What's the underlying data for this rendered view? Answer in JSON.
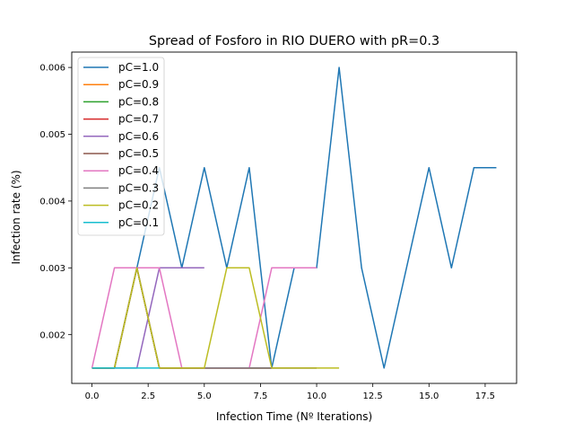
{
  "chart_data": {
    "type": "line",
    "title": "Spread of Fosforo in RIO DUERO with pR=0.3",
    "xlabel": "Infection Time (Nº Iterations)",
    "ylabel": "Infection rate (%)",
    "xlim": [
      -0.9,
      18.9
    ],
    "ylim": [
      0.00127,
      0.00623
    ],
    "xticks": [
      0.0,
      2.5,
      5.0,
      7.5,
      10.0,
      12.5,
      15.0,
      17.5
    ],
    "xtick_labels": [
      "0.0",
      "2.5",
      "5.0",
      "7.5",
      "10.0",
      "12.5",
      "15.0",
      "17.5"
    ],
    "yticks": [
      0.002,
      0.003,
      0.004,
      0.005,
      0.006
    ],
    "ytick_labels": [
      "0.002",
      "0.003",
      "0.004",
      "0.005",
      "0.006"
    ],
    "grid": false,
    "legend": "top-left",
    "series": [
      {
        "name": "pC=1.0",
        "color": "#1f77b4",
        "x": [
          0,
          1,
          2,
          3,
          4,
          5,
          6,
          7,
          8,
          9,
          10,
          11,
          12,
          13,
          14,
          15,
          16,
          17,
          18
        ],
        "y": [
          0.0015,
          0.0015,
          0.003,
          0.0045,
          0.003,
          0.0045,
          0.003,
          0.0045,
          0.0015,
          0.003,
          0.003,
          0.006,
          0.003,
          0.0015,
          0.003,
          0.0045,
          0.003,
          0.0045,
          0.0045
        ]
      },
      {
        "name": "pC=0.9",
        "color": "#ff7f0e",
        "x": [
          0,
          1,
          2,
          3,
          4,
          5,
          6,
          7,
          8
        ],
        "y": [
          0.0015,
          0.0015,
          0.003,
          0.0015,
          0.0015,
          0.0015,
          0.0015,
          0.0015,
          0.0015
        ]
      },
      {
        "name": "pC=0.8",
        "color": "#2ca02c",
        "x": [
          0,
          1,
          2,
          3,
          4,
          5,
          6,
          7,
          8
        ],
        "y": [
          0.0015,
          0.0015,
          0.003,
          0.0015,
          0.0015,
          0.0015,
          0.0015,
          0.0015,
          0.0015
        ]
      },
      {
        "name": "pC=0.7",
        "color": "#d62728",
        "x": [
          0,
          1,
          2,
          3,
          4,
          5,
          6,
          7,
          8
        ],
        "y": [
          0.0015,
          0.0015,
          0.003,
          0.0015,
          0.0015,
          0.0015,
          0.0015,
          0.0015,
          0.0015
        ]
      },
      {
        "name": "pC=0.6",
        "color": "#9467bd",
        "x": [
          0,
          1,
          2,
          3,
          4,
          5
        ],
        "y": [
          0.0015,
          0.0015,
          0.0015,
          0.003,
          0.003,
          0.003
        ]
      },
      {
        "name": "pC=0.5",
        "color": "#8c564b",
        "x": [
          0,
          1,
          2,
          3,
          4,
          5,
          6,
          7,
          8,
          9,
          10
        ],
        "y": [
          0.0015,
          0.0015,
          0.003,
          0.0015,
          0.0015,
          0.0015,
          0.0015,
          0.0015,
          0.0015,
          0.0015,
          0.0015
        ]
      },
      {
        "name": "pC=0.4",
        "color": "#e377c2",
        "x": [
          0,
          1,
          2,
          3,
          4,
          5,
          6,
          7,
          8,
          9,
          10
        ],
        "y": [
          0.0015,
          0.003,
          0.003,
          0.003,
          0.0015,
          0.0015,
          0.0015,
          0.0015,
          0.003,
          0.003,
          0.003
        ]
      },
      {
        "name": "pC=0.3",
        "color": "#7f7f7f",
        "x": [
          0,
          1,
          2,
          3,
          4,
          5,
          6,
          7,
          8,
          9,
          10
        ],
        "y": [
          0.0015,
          0.0015,
          0.003,
          0.0015,
          0.0015,
          0.0015,
          0.0015,
          0.0015,
          0.0015,
          0.0015,
          0.0015
        ]
      },
      {
        "name": "pC=0.2",
        "color": "#bcbd22",
        "x": [
          0,
          1,
          2,
          3,
          4,
          5,
          6,
          7,
          8,
          9,
          10,
          11
        ],
        "y": [
          0.0015,
          0.0015,
          0.003,
          0.0015,
          0.0015,
          0.0015,
          0.003,
          0.003,
          0.0015,
          0.0015,
          0.0015,
          0.0015
        ]
      },
      {
        "name": "pC=0.1",
        "color": "#17becf",
        "x": [
          0,
          1,
          2,
          3
        ],
        "y": [
          0.0015,
          0.0015,
          0.0015,
          0.0015
        ]
      }
    ]
  }
}
